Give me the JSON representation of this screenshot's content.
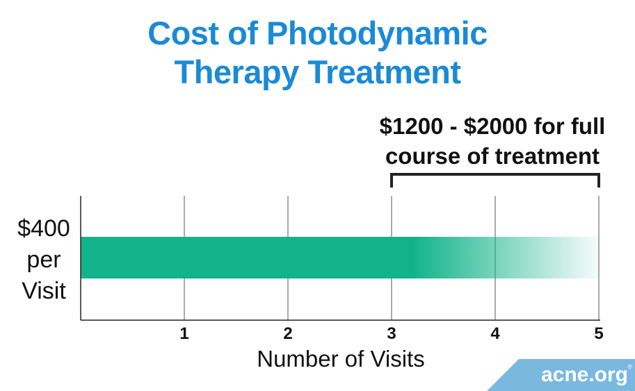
{
  "title": {
    "line1": "Cost of Photodynamic",
    "line2": "Therapy Treatment"
  },
  "colors": {
    "title": "#1a8ad6",
    "bar": "#12b38a",
    "logo_bg": "#7ab8e0",
    "text": "#111111"
  },
  "chart_data": {
    "type": "bar",
    "orientation": "horizontal",
    "xlabel": "Number of Visits",
    "ylabel_lines": [
      "$400",
      "per",
      "Visit"
    ],
    "xlim": [
      0,
      5
    ],
    "x_ticks": [
      "1",
      "2",
      "3",
      "4",
      "5"
    ],
    "grid": true,
    "bar": {
      "value_per_visit": 400,
      "solid_to": 3,
      "fade_to": 5
    },
    "annotation": {
      "lines": [
        "$1200 - $2000 for full",
        "course of treatment"
      ],
      "range": [
        3,
        5
      ]
    }
  },
  "logo": {
    "text": "acne.org",
    "reg_mark": "®"
  }
}
